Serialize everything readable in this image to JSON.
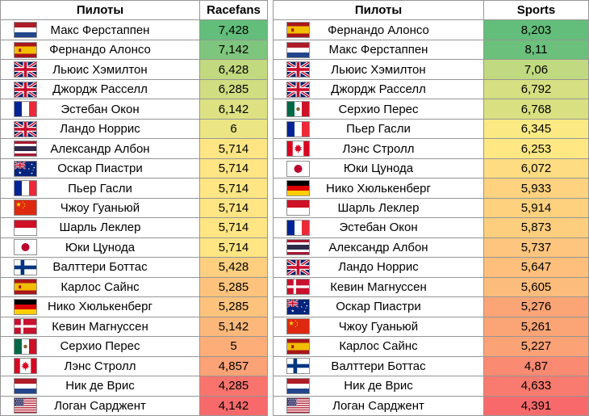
{
  "color_scale": {
    "min": "#F8696B",
    "mid": "#FFEB84",
    "max": "#63BE7B"
  },
  "chart_data": [
    {
      "type": "table",
      "columns": [
        "Пилоты",
        "Racefans"
      ],
      "rows": [
        {
          "flag": "netherlands",
          "name": "Макс Ферстаппен",
          "value": "7,428"
        },
        {
          "flag": "spain",
          "name": "Фернандо Алонсо",
          "value": "7,142"
        },
        {
          "flag": "uk",
          "name": "Льюис Хэмилтон",
          "value": "6,428"
        },
        {
          "flag": "uk",
          "name": "Джордж Расселл",
          "value": "6,285"
        },
        {
          "flag": "france",
          "name": "Эстебан Окон",
          "value": "6,142"
        },
        {
          "flag": "uk",
          "name": "Ландо Норрис",
          "value": "6"
        },
        {
          "flag": "thailand",
          "name": "Александр Албон",
          "value": "5,714"
        },
        {
          "flag": "australia",
          "name": "Оскар Пиастри",
          "value": "5,714"
        },
        {
          "flag": "france",
          "name": "Пьер Гасли",
          "value": "5,714"
        },
        {
          "flag": "china",
          "name": "Чжоу Гуаньюй",
          "value": "5,714"
        },
        {
          "flag": "monaco",
          "name": "Шарль Леклер",
          "value": "5,714"
        },
        {
          "flag": "japan",
          "name": "Юки Цунода",
          "value": "5,714"
        },
        {
          "flag": "finland",
          "name": "Валттери Боттас",
          "value": "5,428"
        },
        {
          "flag": "spain",
          "name": "Карлос Сайнс",
          "value": "5,285"
        },
        {
          "flag": "germany",
          "name": "Нико Хюлькенберг",
          "value": "5,285"
        },
        {
          "flag": "denmark",
          "name": "Кевин Магнуссен",
          "value": "5,142"
        },
        {
          "flag": "mexico",
          "name": "Серхио Перес",
          "value": "5"
        },
        {
          "flag": "canada",
          "name": "Лэнс Стролл",
          "value": "4,857"
        },
        {
          "flag": "netherlands",
          "name": "Ник де Врис",
          "value": "4,285"
        },
        {
          "flag": "usa",
          "name": "Логан Сарджент",
          "value": "4,142"
        }
      ]
    },
    {
      "type": "table",
      "columns": [
        "Пилоты",
        "Sports"
      ],
      "rows": [
        {
          "flag": "spain",
          "name": "Фернандо Алонсо",
          "value": "8,203"
        },
        {
          "flag": "netherlands",
          "name": "Макс Ферстаппен",
          "value": "8,11"
        },
        {
          "flag": "uk",
          "name": "Льюис Хэмилтон",
          "value": "7,06"
        },
        {
          "flag": "uk",
          "name": "Джордж Расселл",
          "value": "6,792"
        },
        {
          "flag": "mexico",
          "name": "Серхио Перес",
          "value": "6,768"
        },
        {
          "flag": "france",
          "name": "Пьер Гасли",
          "value": "6,345"
        },
        {
          "flag": "canada",
          "name": "Лэнс Стролл",
          "value": "6,253"
        },
        {
          "flag": "japan",
          "name": "Юки Цунода",
          "value": "6,072"
        },
        {
          "flag": "germany",
          "name": "Нико Хюлькенберг",
          "value": "5,933"
        },
        {
          "flag": "monaco",
          "name": "Шарль Леклер",
          "value": "5,914"
        },
        {
          "flag": "france",
          "name": "Эстебан Окон",
          "value": "5,873"
        },
        {
          "flag": "thailand",
          "name": "Александр Албон",
          "value": "5,737"
        },
        {
          "flag": "uk",
          "name": "Ландо Норрис",
          "value": "5,647"
        },
        {
          "flag": "denmark",
          "name": "Кевин Магнуссен",
          "value": "5,605"
        },
        {
          "flag": "australia",
          "name": "Оскар Пиастри",
          "value": "5,276"
        },
        {
          "flag": "china",
          "name": "Чжоу Гуаньюй",
          "value": "5,261"
        },
        {
          "flag": "spain",
          "name": "Карлос Сайнс",
          "value": "5,227"
        },
        {
          "flag": "finland",
          "name": "Валттери Боттас",
          "value": "4,87"
        },
        {
          "flag": "netherlands",
          "name": "Ник де Врис",
          "value": "4,633"
        },
        {
          "flag": "usa",
          "name": "Логан Сарджент",
          "value": "4,391"
        }
      ]
    }
  ]
}
